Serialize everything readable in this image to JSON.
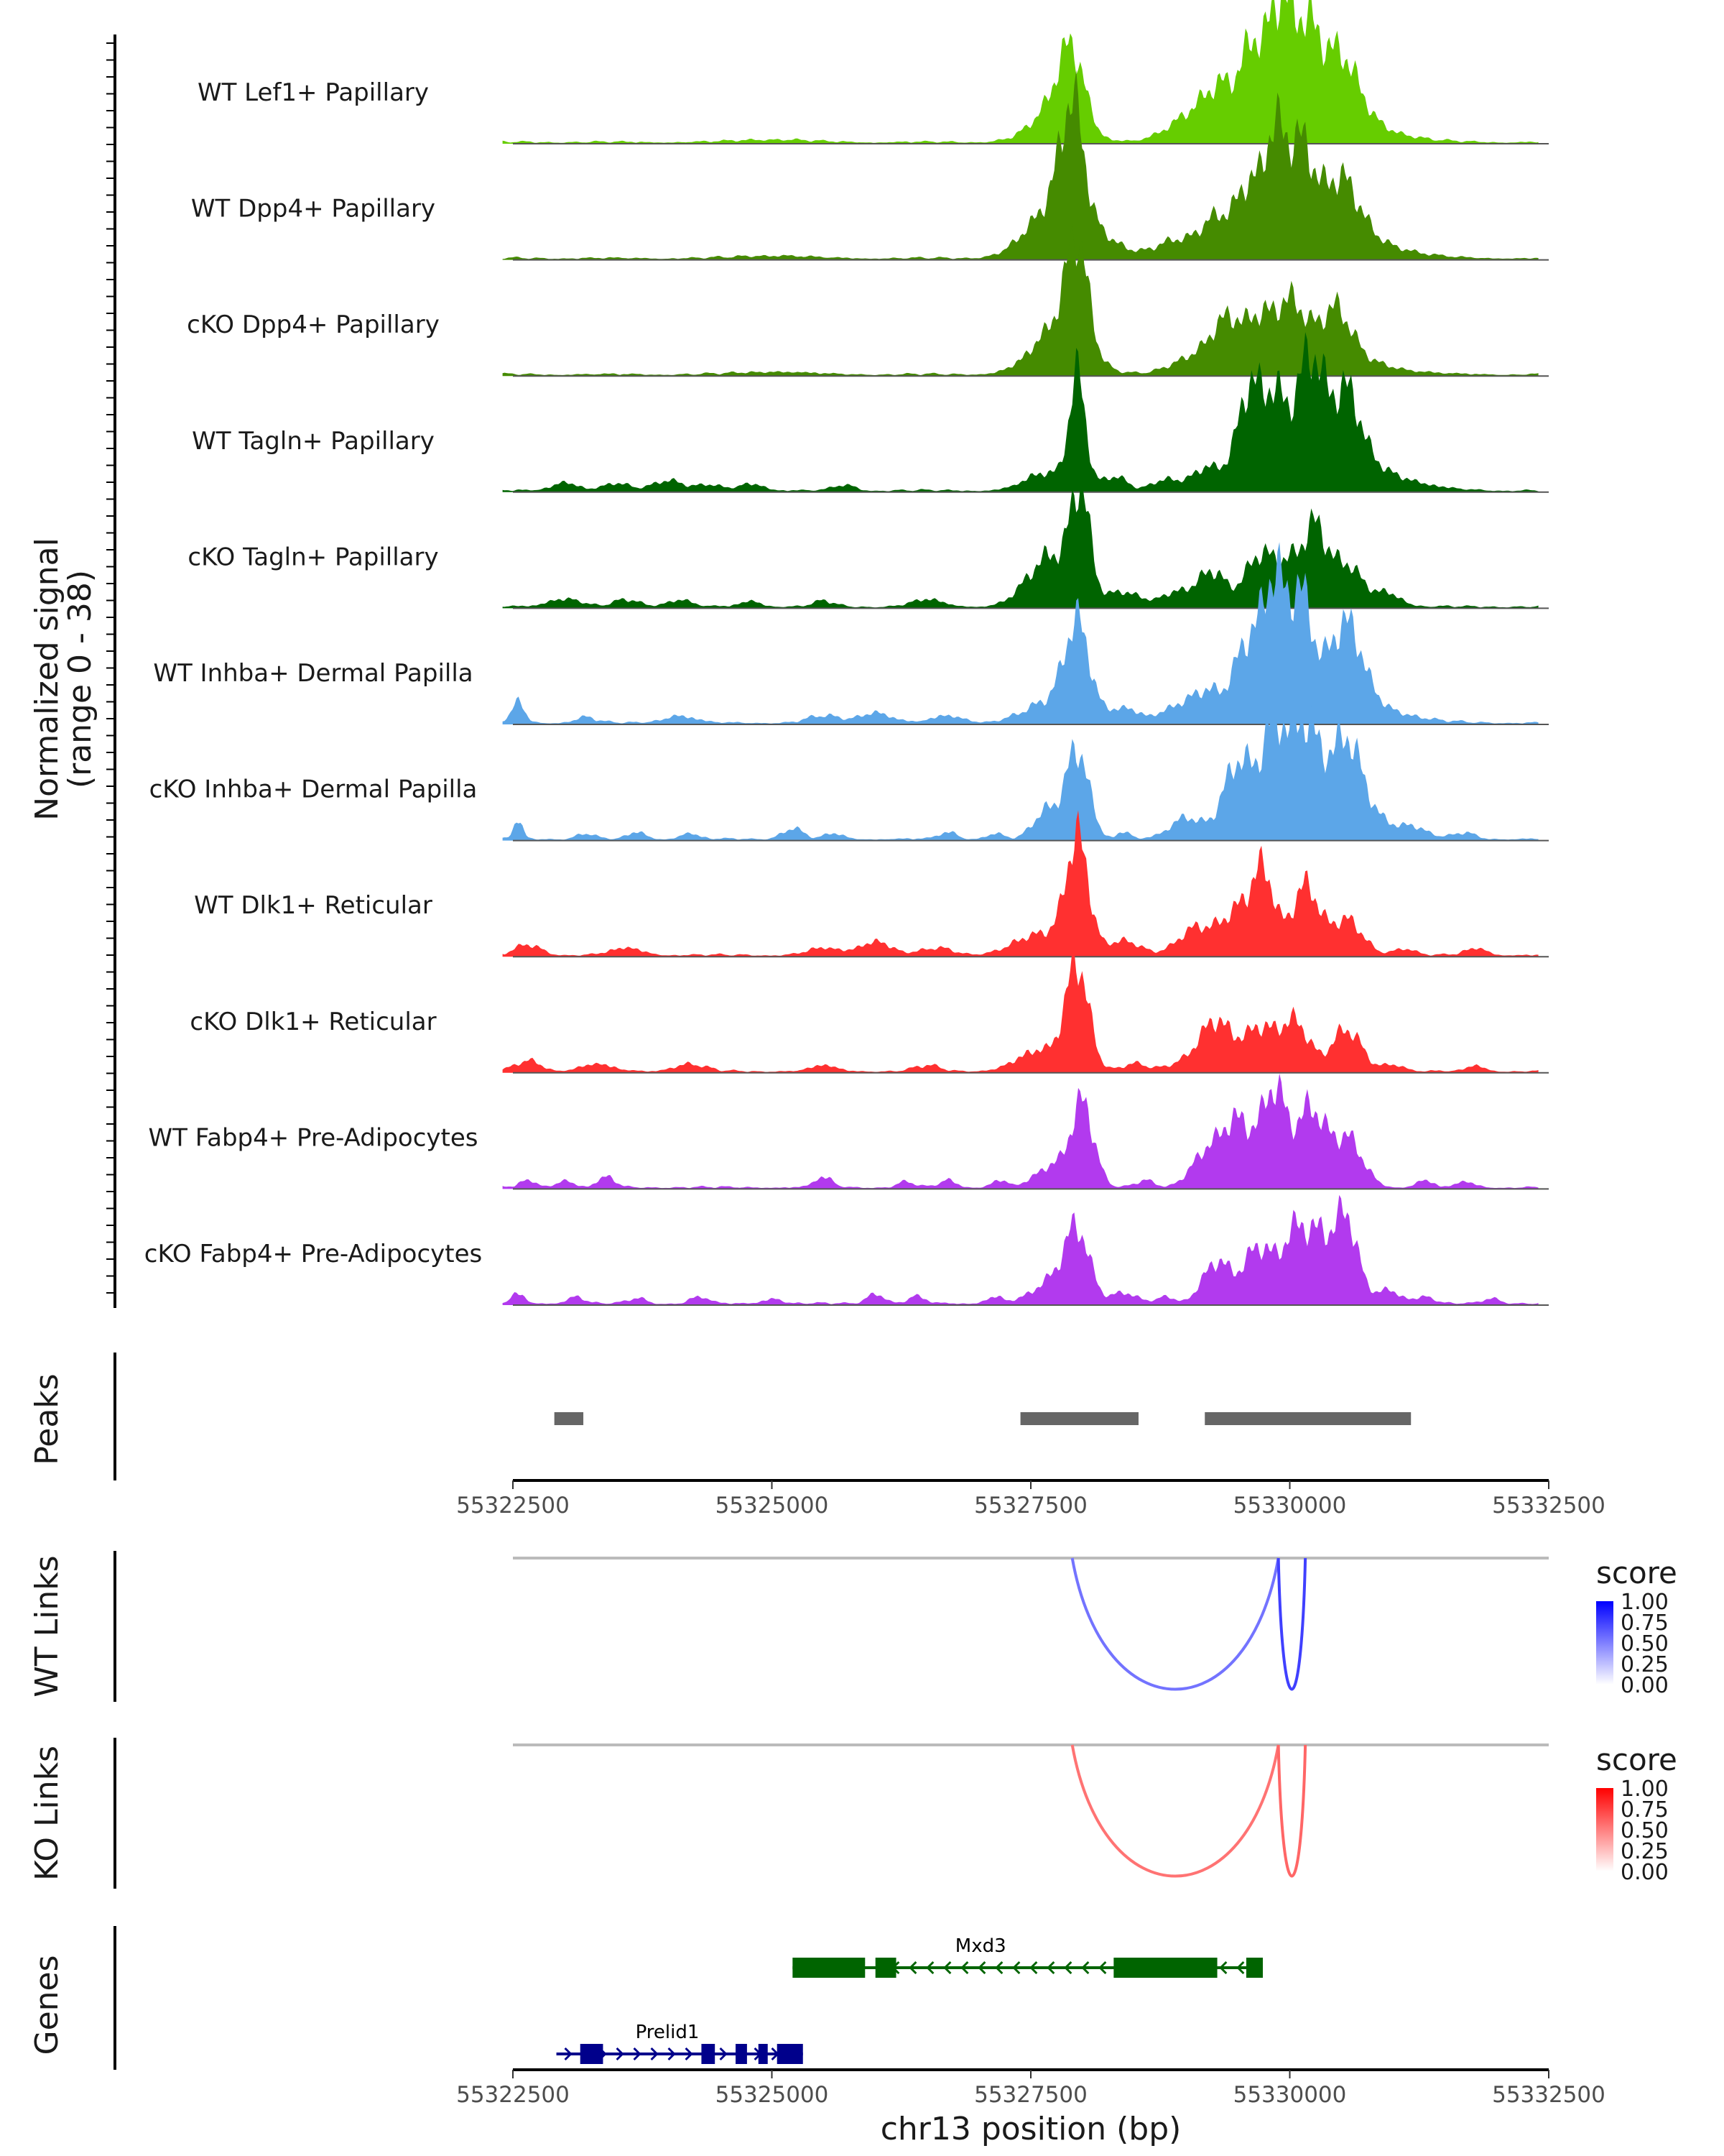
{
  "chart_data": {
    "type": "area",
    "title": "",
    "ylabel": "Normalized signal",
    "ylabel_range": "(range 0 - 38)",
    "ylim": [
      0,
      38
    ],
    "xlabel": "chr13 position (bp)",
    "xlim": [
      55322500,
      55332500
    ],
    "x_ticks": [
      "55322500",
      "55325000",
      "55327500",
      "55330000",
      "55332500"
    ],
    "tracks": [
      {
        "name": "WT Lef1+ Papillary",
        "color": "#66cd00",
        "peaks": [
          [
            55325000,
            0.4,
            300
          ],
          [
            55327700,
            1.6,
            250
          ],
          [
            55327900,
            9.5,
            120
          ],
          [
            55327780,
            4,
            200
          ],
          [
            55329050,
            3.5,
            220
          ],
          [
            55329350,
            5.5,
            160
          ],
          [
            55329650,
            10,
            110
          ],
          [
            55329900,
            14,
            100
          ],
          [
            55330150,
            11,
            130
          ],
          [
            55330500,
            7.5,
            160
          ],
          [
            55330200,
            6,
            500
          ]
        ]
      },
      {
        "name": "WT Dpp4+ Papillary",
        "color": "#458b00",
        "peaks": [
          [
            55325000,
            0.4,
            300
          ],
          [
            55327650,
            3,
            250
          ],
          [
            55327900,
            16,
            110
          ],
          [
            55327800,
            5,
            250
          ],
          [
            55328200,
            2,
            200
          ],
          [
            55328900,
            2.5,
            200
          ],
          [
            55329300,
            5,
            150
          ],
          [
            55329600,
            8,
            110
          ],
          [
            55329850,
            14,
            100
          ],
          [
            55330100,
            12,
            120
          ],
          [
            55330500,
            7,
            160
          ],
          [
            55330300,
            5,
            500
          ]
        ]
      },
      {
        "name": "cKO Dpp4+ Papillary",
        "color": "#458b00",
        "peaks": [
          [
            55325000,
            0.4,
            300
          ],
          [
            55327700,
            3,
            250
          ],
          [
            55327950,
            14,
            100
          ],
          [
            55327850,
            5,
            220
          ],
          [
            55329100,
            2.5,
            220
          ],
          [
            55329400,
            6,
            140
          ],
          [
            55329700,
            5,
            120
          ],
          [
            55330000,
            7,
            140
          ],
          [
            55330450,
            6,
            140
          ],
          [
            55330200,
            4,
            500
          ]
        ]
      },
      {
        "name": "WT Tagln+ Papillary",
        "color": "#006400",
        "peaks": [
          [
            55323000,
            1.2,
            120
          ],
          [
            55323500,
            1,
            120
          ],
          [
            55324000,
            1.5,
            150
          ],
          [
            55324400,
            0.8,
            100
          ],
          [
            55324800,
            1,
            120
          ],
          [
            55325700,
            0.8,
            100
          ],
          [
            55327650,
            2.5,
            200
          ],
          [
            55327950,
            16,
            80
          ],
          [
            55328300,
            2,
            120
          ],
          [
            55328800,
            1.5,
            120
          ],
          [
            55329200,
            3,
            150
          ],
          [
            55329600,
            12,
            110
          ],
          [
            55329850,
            10,
            120
          ],
          [
            55330200,
            14,
            120
          ],
          [
            55330550,
            9,
            130
          ],
          [
            55330350,
            6,
            500
          ]
        ]
      },
      {
        "name": "cKO Tagln+ Papillary",
        "color": "#006400",
        "peaks": [
          [
            55323000,
            1.2,
            150
          ],
          [
            55323600,
            1,
            120
          ],
          [
            55324100,
            1,
            120
          ],
          [
            55324800,
            0.8,
            100
          ],
          [
            55325500,
            0.8,
            100
          ],
          [
            55326500,
            1,
            150
          ],
          [
            55327600,
            3,
            200
          ],
          [
            55327980,
            14,
            90
          ],
          [
            55327780,
            5,
            220
          ],
          [
            55328400,
            2,
            150
          ],
          [
            55328900,
            2,
            150
          ],
          [
            55329250,
            5,
            140
          ],
          [
            55329700,
            7,
            130
          ],
          [
            55330000,
            6,
            140
          ],
          [
            55330250,
            10,
            110
          ],
          [
            55330550,
            6,
            150
          ],
          [
            55330950,
            2,
            120
          ]
        ]
      },
      {
        "name": "WT Inhba+ Dermal Papilla",
        "color": "#5ca6e8",
        "peaks": [
          [
            55322550,
            3,
            60
          ],
          [
            55323200,
            0.8,
            100
          ],
          [
            55324100,
            1,
            150
          ],
          [
            55325500,
            1,
            150
          ],
          [
            55326000,
            1.5,
            150
          ],
          [
            55326700,
            1,
            150
          ],
          [
            55327700,
            3,
            250
          ],
          [
            55327950,
            13,
            120
          ],
          [
            55328400,
            2,
            150
          ],
          [
            55328900,
            2,
            150
          ],
          [
            55329200,
            4,
            150
          ],
          [
            55329600,
            10,
            130
          ],
          [
            55329850,
            16,
            100
          ],
          [
            55330100,
            14,
            110
          ],
          [
            55330550,
            10,
            150
          ],
          [
            55330300,
            5,
            500
          ]
        ]
      },
      {
        "name": "cKO Inhba+ Dermal Papilla",
        "color": "#5ca6e8",
        "peaks": [
          [
            55322550,
            3,
            40
          ],
          [
            55323200,
            0.8,
            80
          ],
          [
            55323700,
            1,
            80
          ],
          [
            55324200,
            0.8,
            80
          ],
          [
            55325200,
            1.5,
            100
          ],
          [
            55325600,
            0.8,
            80
          ],
          [
            55326700,
            1,
            80
          ],
          [
            55327150,
            0.8,
            80
          ],
          [
            55327650,
            4,
            120
          ],
          [
            55327950,
            13,
            110
          ],
          [
            55328400,
            1,
            60
          ],
          [
            55329000,
            3,
            150
          ],
          [
            55329500,
            10,
            140
          ],
          [
            55329850,
            13,
            120
          ],
          [
            55330150,
            12,
            130
          ],
          [
            55330550,
            10,
            140
          ],
          [
            55330350,
            5,
            500
          ],
          [
            55331200,
            0.8,
            80
          ],
          [
            55331700,
            0.8,
            80
          ]
        ]
      },
      {
        "name": "WT Dlk1+ Reticular",
        "color": "#ff3030",
        "peaks": [
          [
            55322650,
            1.5,
            120
          ],
          [
            55323600,
            1,
            150
          ],
          [
            55325500,
            1,
            150
          ],
          [
            55326000,
            2,
            150
          ],
          [
            55326600,
            1,
            150
          ],
          [
            55327600,
            3,
            250
          ],
          [
            55327950,
            16,
            110
          ],
          [
            55328400,
            2,
            150
          ],
          [
            55329100,
            4,
            170
          ],
          [
            55329500,
            6,
            150
          ],
          [
            55329750,
            11,
            110
          ],
          [
            55330150,
            10,
            130
          ],
          [
            55330550,
            5,
            150
          ],
          [
            55331100,
            1,
            100
          ],
          [
            55331800,
            1,
            100
          ]
        ]
      },
      {
        "name": "cKO Dlk1+ Reticular",
        "color": "#ff3030",
        "peaks": [
          [
            55322650,
            1.5,
            120
          ],
          [
            55323300,
            1,
            150
          ],
          [
            55324200,
            1,
            150
          ],
          [
            55325500,
            0.8,
            120
          ],
          [
            55326500,
            0.8,
            120
          ],
          [
            55327600,
            3,
            220
          ],
          [
            55327950,
            15,
            110
          ],
          [
            55328500,
            1,
            120
          ],
          [
            55329100,
            2,
            200
          ],
          [
            55329300,
            6,
            140
          ],
          [
            55329700,
            6,
            150
          ],
          [
            55330050,
            7,
            140
          ],
          [
            55330550,
            6,
            140
          ],
          [
            55331000,
            1,
            100
          ],
          [
            55331800,
            0.8,
            80
          ]
        ]
      },
      {
        "name": "WT Fabp4+ Pre-Adipocytes",
        "color": "#b23aee",
        "peaks": [
          [
            55322650,
            1,
            80
          ],
          [
            55323000,
            1,
            80
          ],
          [
            55323400,
            1.5,
            80
          ],
          [
            55325500,
            1.5,
            80
          ],
          [
            55326300,
            0.8,
            80
          ],
          [
            55326700,
            1,
            80
          ],
          [
            55327200,
            1,
            80
          ],
          [
            55327700,
            3,
            150
          ],
          [
            55328000,
            12,
            110
          ],
          [
            55328600,
            1,
            80
          ],
          [
            55329200,
            5,
            150
          ],
          [
            55329500,
            9,
            140
          ],
          [
            55329850,
            14,
            120
          ],
          [
            55330200,
            11,
            130
          ],
          [
            55330550,
            7,
            150
          ],
          [
            55331300,
            1,
            80
          ],
          [
            55331700,
            0.8,
            80
          ]
        ]
      },
      {
        "name": "cKO Fabp4+ Pre-Adipocytes",
        "color": "#b23aee",
        "peaks": [
          [
            55322550,
            1.5,
            60
          ],
          [
            55323100,
            1,
            80
          ],
          [
            55323700,
            0.8,
            80
          ],
          [
            55324300,
            1,
            80
          ],
          [
            55325000,
            0.8,
            80
          ],
          [
            55326000,
            1.5,
            80
          ],
          [
            55326400,
            1,
            80
          ],
          [
            55327150,
            1,
            80
          ],
          [
            55327700,
            3,
            180
          ],
          [
            55327950,
            10,
            120
          ],
          [
            55328400,
            1.5,
            120
          ],
          [
            55328800,
            1,
            80
          ],
          [
            55329300,
            6,
            140
          ],
          [
            55329700,
            8,
            130
          ],
          [
            55330050,
            10,
            130
          ],
          [
            55330300,
            8,
            120
          ],
          [
            55330550,
            12,
            110
          ],
          [
            55330950,
            2,
            120
          ],
          [
            55331300,
            1,
            80
          ],
          [
            55331950,
            0.8,
            80
          ]
        ]
      }
    ],
    "peaks_track": {
      "label": "Peaks",
      "color": "#666666",
      "regions": [
        [
          55322900,
          55323180
        ],
        [
          55327400,
          55328540
        ],
        [
          55329180,
          55331170
        ]
      ]
    },
    "links": [
      {
        "label": "WT Links",
        "legend_title": "score",
        "legend_ticks": [
          "1.00",
          "0.75",
          "0.50",
          "0.25",
          "0.00"
        ],
        "gradient": [
          "#ffffff",
          "#0000ff"
        ],
        "arcs": [
          {
            "from": 55327900,
            "to": 55329890,
            "score": 0.55
          },
          {
            "from": 55329890,
            "to": 55330150,
            "score": 0.75
          }
        ]
      },
      {
        "label": "KO Links",
        "legend_title": "score",
        "legend_ticks": [
          "1.00",
          "0.75",
          "0.50",
          "0.25",
          "0.00"
        ],
        "gradient": [
          "#ffffff",
          "#ff0000"
        ],
        "arcs": [
          {
            "from": 55327900,
            "to": 55329890,
            "score": 0.55
          },
          {
            "from": 55329890,
            "to": 55330150,
            "score": 0.6
          }
        ]
      }
    ],
    "genes_track": {
      "label": "Genes",
      "genes": [
        {
          "name": "Mxd3",
          "strand": "-",
          "color": "#006400",
          "start": 55325200,
          "end": 55329740,
          "exons": [
            [
              55325200,
              55325900
            ],
            [
              55326000,
              55326200
            ],
            [
              55328300,
              55329300
            ],
            [
              55329580,
              55329740
            ]
          ]
        },
        {
          "name": "Prelid1",
          "strand": "+",
          "color": "#00008b",
          "start": 55322920,
          "end": 55325300,
          "exons": [
            [
              55323150,
              55323370
            ],
            [
              55324320,
              55324450
            ],
            [
              55324650,
              55324760
            ],
            [
              55324870,
              55324960
            ],
            [
              55325050,
              55325300
            ]
          ]
        }
      ]
    }
  }
}
